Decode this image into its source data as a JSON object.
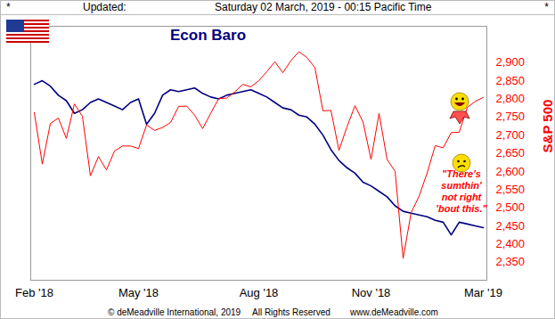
{
  "header": {
    "left_mark": "*",
    "updated_label": "Updated:",
    "timestamp": "Saturday 02 March, 2019 - 00:15 Pacific Time",
    "right_mark": "*"
  },
  "chart_data": {
    "type": "line",
    "title": "Econ Baro",
    "y_label": "S&P 500",
    "categories": [
      "Feb '18",
      null,
      null,
      null,
      null,
      null,
      null,
      null,
      null,
      null,
      null,
      null,
      null,
      "May '18",
      null,
      null,
      null,
      null,
      null,
      null,
      null,
      null,
      null,
      null,
      null,
      null,
      null,
      null,
      "Aug '18",
      null,
      null,
      null,
      null,
      null,
      null,
      null,
      null,
      null,
      null,
      null,
      null,
      null,
      "Nov '18",
      null,
      null,
      null,
      null,
      null,
      null,
      null,
      null,
      null,
      null,
      null,
      null,
      null,
      "Mar '19"
    ],
    "series": [
      {
        "name": "Econ Baro",
        "color": "#000080",
        "values": [
          2840,
          2850,
          2835,
          2810,
          2795,
          2760,
          2770,
          2790,
          2800,
          2790,
          2780,
          2770,
          2790,
          2800,
          2730,
          2760,
          2810,
          2825,
          2820,
          2825,
          2830,
          2815,
          2805,
          2800,
          2810,
          2815,
          2820,
          2825,
          2815,
          2805,
          2790,
          2775,
          2770,
          2755,
          2750,
          2730,
          2700,
          2660,
          2630,
          2610,
          2595,
          2570,
          2560,
          2545,
          2530,
          2505,
          2490,
          2485,
          2480,
          2475,
          2465,
          2460,
          2425,
          2460,
          2455,
          2450,
          2445
        ]
      },
      {
        "name": "S&P 500",
        "color": "#ff0000",
        "values": [
          2762,
          2620,
          2732,
          2747,
          2691,
          2786,
          2752,
          2588,
          2641,
          2604,
          2656,
          2670,
          2670,
          2663,
          2728,
          2713,
          2721,
          2735,
          2779,
          2780,
          2755,
          2718,
          2760,
          2801,
          2802,
          2819,
          2840,
          2833,
          2850,
          2875,
          2902,
          2872,
          2905,
          2930,
          2914,
          2886,
          2767,
          2768,
          2658,
          2723,
          2781,
          2736,
          2633,
          2760,
          2633,
          2600,
          2360,
          2486,
          2532,
          2596,
          2671,
          2665,
          2707,
          2708,
          2776,
          2793,
          2804
        ]
      }
    ],
    "ylim": [
      2300,
      3000
    ],
    "yticks": [
      2350,
      2400,
      2450,
      2500,
      2550,
      2600,
      2650,
      2700,
      2750,
      2800,
      2850,
      2900
    ],
    "annotations": [
      {
        "text": "\"There's\nsumthin'\nnot right\n'bout this.\"",
        "color": "#ff0000"
      }
    ]
  },
  "footer": {
    "copyright": "© deMeadville International, 2019",
    "rights": "All Rights Reserved",
    "website": "www.deMeadville.com"
  }
}
